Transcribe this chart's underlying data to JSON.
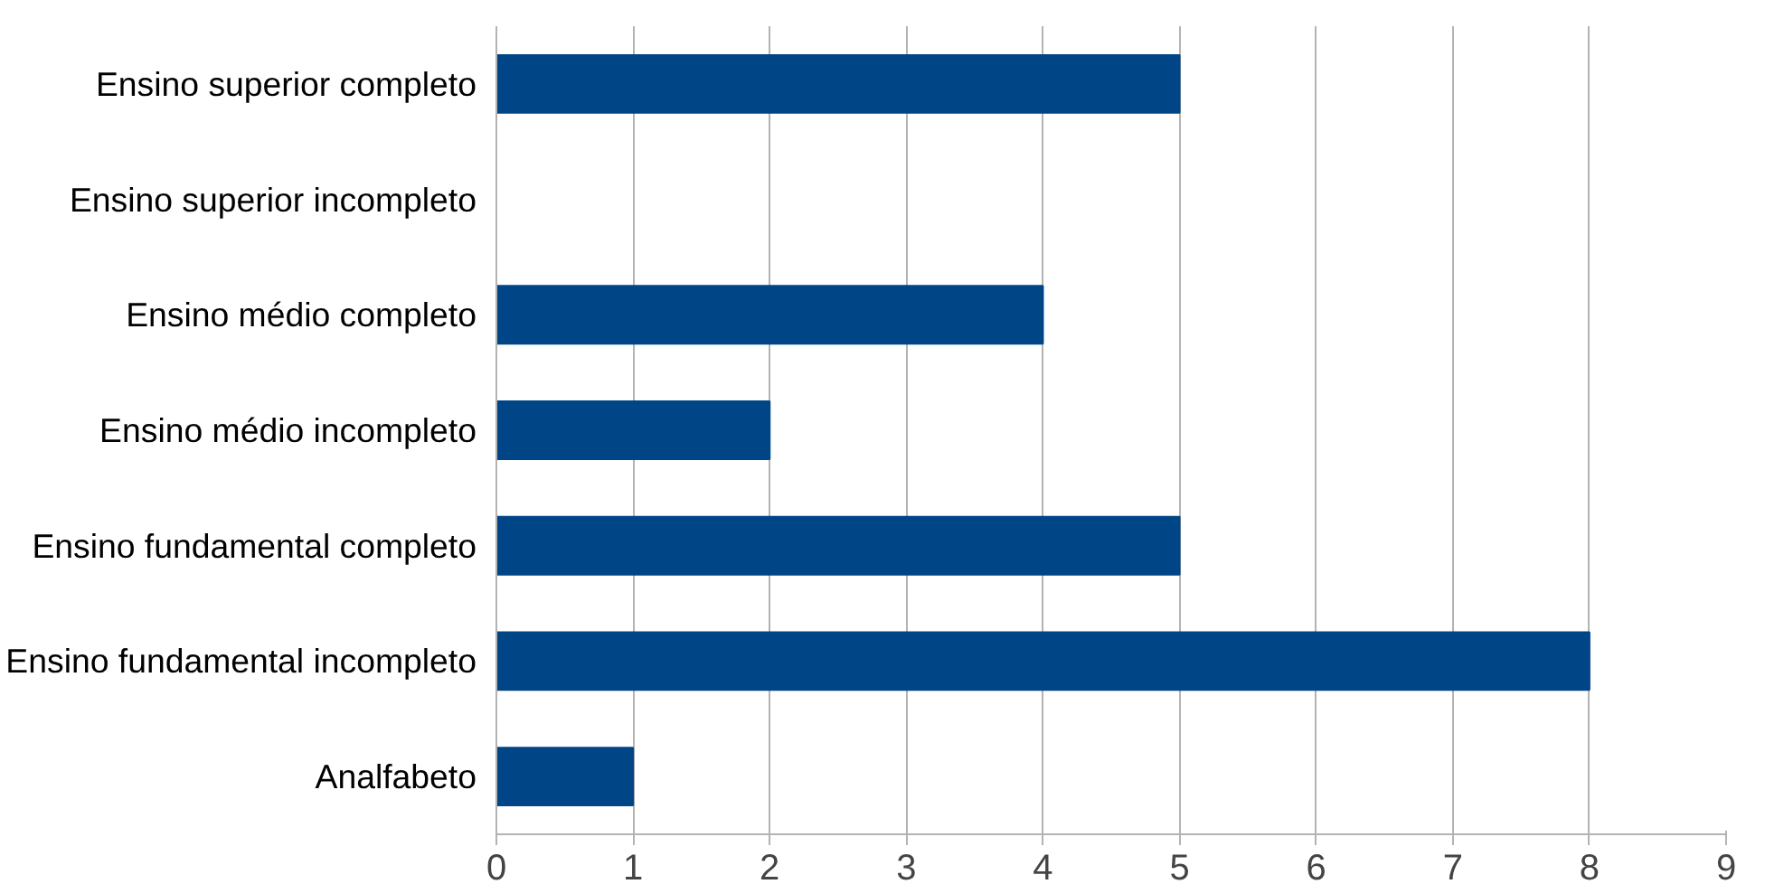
{
  "chart_data": {
    "type": "bar",
    "orientation": "horizontal",
    "categories": [
      "Ensino superior completo",
      "Ensino superior incompleto",
      "Ensino médio completo",
      "Ensino médio incompleto",
      "Ensino fundamental completo",
      "Ensino fundamental incompleto",
      "Analfabeto"
    ],
    "values": [
      5,
      0,
      4,
      2,
      5,
      8,
      1
    ],
    "color": "#004586",
    "xlim": [
      0,
      9
    ],
    "xticks": [
      0,
      1,
      2,
      3,
      4,
      5,
      6,
      7,
      8,
      9
    ],
    "grid": "x"
  }
}
